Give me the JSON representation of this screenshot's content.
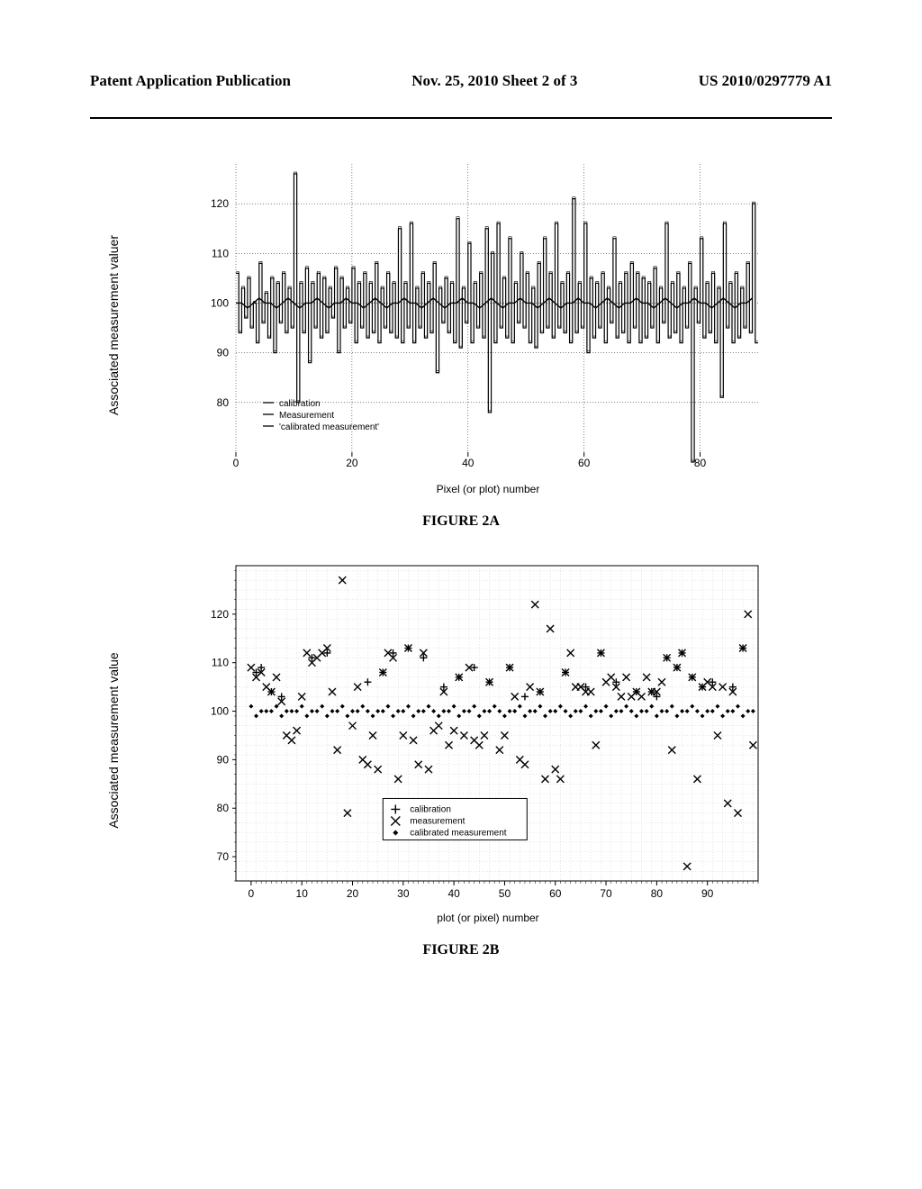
{
  "header": {
    "left": "Patent Application Publication",
    "center": "Nov. 25, 2010  Sheet 2 of 3",
    "right": "US 2010/0297779 A1"
  },
  "fig2a": {
    "title": "FIGURE 2A",
    "ylabel": "Associated measurement valuer",
    "xlabel": "Pixel (or plot) number",
    "xlim": [
      0,
      90
    ],
    "ylim": [
      70,
      128
    ],
    "xticks": [
      0,
      20,
      40,
      60,
      80
    ],
    "yticks": [
      80,
      90,
      100,
      110,
      120
    ],
    "grid_color": "#000000",
    "line_width": 1.2,
    "legend": {
      "items": [
        {
          "label": "calibration"
        },
        {
          "label": "Measurement"
        },
        {
          "label": "'calibrated measurement'"
        }
      ]
    },
    "calibrated": [
      100,
      100,
      99,
      100,
      101,
      100,
      100,
      99,
      100,
      101,
      100,
      99,
      100,
      100,
      101,
      100,
      99,
      100,
      100,
      101,
      100,
      100,
      99,
      100,
      101,
      100,
      99,
      100,
      100,
      101,
      100,
      100,
      99,
      100,
      101,
      100,
      99,
      100,
      100,
      101,
      100,
      100,
      99,
      100,
      101,
      100,
      99,
      100,
      100,
      101,
      100,
      100,
      99,
      100,
      101,
      100,
      99,
      100,
      100,
      101,
      100,
      100,
      99,
      100,
      101,
      100,
      99,
      100,
      100,
      101,
      100,
      100,
      99,
      100,
      101,
      100,
      99,
      100,
      100,
      101,
      100,
      100,
      99,
      100,
      101,
      100,
      99,
      100,
      100,
      101
    ],
    "cal_pairs": [
      [
        106,
        94
      ],
      [
        103,
        97
      ],
      [
        105,
        95
      ],
      [
        100,
        92
      ],
      [
        108,
        96
      ],
      [
        102,
        93
      ],
      [
        105,
        90
      ],
      [
        104,
        96
      ],
      [
        106,
        94
      ],
      [
        103,
        95
      ],
      [
        126,
        80
      ],
      [
        104,
        94
      ],
      [
        107,
        88
      ],
      [
        104,
        95
      ],
      [
        106,
        93
      ],
      [
        105,
        94
      ],
      [
        103,
        97
      ],
      [
        107,
        90
      ],
      [
        105,
        95
      ],
      [
        103,
        96
      ],
      [
        107,
        92
      ],
      [
        104,
        95
      ],
      [
        106,
        93
      ],
      [
        104,
        94
      ],
      [
        108,
        92
      ],
      [
        103,
        95
      ],
      [
        106,
        94
      ],
      [
        104,
        93
      ],
      [
        115,
        92
      ],
      [
        104,
        95
      ],
      [
        116,
        92
      ],
      [
        103,
        95
      ],
      [
        106,
        93
      ],
      [
        104,
        94
      ],
      [
        108,
        86
      ],
      [
        103,
        96
      ],
      [
        105,
        94
      ],
      [
        104,
        92
      ],
      [
        117,
        91
      ],
      [
        103,
        96
      ],
      [
        112,
        92
      ],
      [
        104,
        95
      ],
      [
        106,
        93
      ],
      [
        115,
        78
      ],
      [
        110,
        92
      ],
      [
        116,
        95
      ],
      [
        105,
        93
      ],
      [
        113,
        92
      ],
      [
        104,
        96
      ],
      [
        110,
        95
      ],
      [
        106,
        92
      ],
      [
        103,
        91
      ],
      [
        108,
        94
      ],
      [
        113,
        95
      ],
      [
        106,
        93
      ],
      [
        116,
        95
      ],
      [
        104,
        94
      ],
      [
        106,
        92
      ],
      [
        121,
        94
      ],
      [
        104,
        95
      ],
      [
        116,
        90
      ],
      [
        105,
        93
      ],
      [
        104,
        95
      ],
      [
        106,
        92
      ],
      [
        103,
        96
      ],
      [
        113,
        93
      ],
      [
        104,
        94
      ],
      [
        106,
        92
      ],
      [
        108,
        95
      ],
      [
        106,
        92
      ],
      [
        105,
        93
      ],
      [
        104,
        95
      ],
      [
        107,
        92
      ],
      [
        103,
        96
      ],
      [
        116,
        93
      ],
      [
        104,
        94
      ],
      [
        106,
        92
      ],
      [
        103,
        95
      ],
      [
        108,
        68
      ],
      [
        103,
        96
      ],
      [
        113,
        93
      ],
      [
        104,
        94
      ],
      [
        106,
        92
      ],
      [
        103,
        81
      ],
      [
        116,
        95
      ],
      [
        104,
        92
      ],
      [
        106,
        93
      ],
      [
        103,
        95
      ],
      [
        108,
        94
      ],
      [
        120,
        92
      ]
    ]
  },
  "fig2b": {
    "title": "FIGURE 2B",
    "ylabel": "Associated measurement value",
    "xlabel": "plot (or pixel) number",
    "xlim": [
      -3,
      100
    ],
    "ylim": [
      65,
      130
    ],
    "xticks": [
      0,
      10,
      20,
      30,
      40,
      50,
      60,
      70,
      80,
      90
    ],
    "yticks": [
      70,
      80,
      90,
      100,
      110,
      120
    ],
    "grid_color": "#cccccc",
    "legend": {
      "items": [
        {
          "marker": "plus",
          "label": "calibration"
        },
        {
          "marker": "x",
          "label": "measurement"
        },
        {
          "marker": "diamond",
          "label": "calibrated measurement"
        }
      ]
    },
    "calibration": [
      [
        1,
        108
      ],
      [
        2,
        109
      ],
      [
        4,
        104
      ],
      [
        6,
        103
      ],
      [
        12,
        111
      ],
      [
        15,
        112
      ],
      [
        23,
        106
      ],
      [
        26,
        108
      ],
      [
        28,
        112
      ],
      [
        31,
        113
      ],
      [
        34,
        111
      ],
      [
        38,
        105
      ],
      [
        41,
        107
      ],
      [
        44,
        109
      ],
      [
        47,
        106
      ],
      [
        51,
        109
      ],
      [
        54,
        103
      ],
      [
        57,
        104
      ],
      [
        62,
        108
      ],
      [
        66,
        105
      ],
      [
        69,
        112
      ],
      [
        72,
        106
      ],
      [
        76,
        104
      ],
      [
        79,
        104
      ],
      [
        80,
        103
      ],
      [
        82,
        111
      ],
      [
        84,
        109
      ],
      [
        85,
        112
      ],
      [
        87,
        107
      ],
      [
        89,
        105
      ],
      [
        91,
        106
      ],
      [
        95,
        105
      ],
      [
        97,
        113
      ]
    ],
    "measurement": [
      [
        0,
        109
      ],
      [
        1,
        107
      ],
      [
        2,
        108
      ],
      [
        3,
        105
      ],
      [
        4,
        104
      ],
      [
        5,
        107
      ],
      [
        6,
        102
      ],
      [
        7,
        95
      ],
      [
        8,
        94
      ],
      [
        9,
        96
      ],
      [
        10,
        103
      ],
      [
        11,
        112
      ],
      [
        12,
        110
      ],
      [
        13,
        111
      ],
      [
        14,
        112
      ],
      [
        15,
        113
      ],
      [
        16,
        104
      ],
      [
        17,
        92
      ],
      [
        18,
        127
      ],
      [
        19,
        79
      ],
      [
        20,
        97
      ],
      [
        21,
        105
      ],
      [
        22,
        90
      ],
      [
        23,
        89
      ],
      [
        24,
        95
      ],
      [
        25,
        88
      ],
      [
        26,
        108
      ],
      [
        27,
        112
      ],
      [
        28,
        111
      ],
      [
        29,
        86
      ],
      [
        30,
        95
      ],
      [
        31,
        113
      ],
      [
        32,
        94
      ],
      [
        33,
        89
      ],
      [
        34,
        112
      ],
      [
        35,
        88
      ],
      [
        36,
        96
      ],
      [
        37,
        97
      ],
      [
        38,
        104
      ],
      [
        39,
        93
      ],
      [
        40,
        96
      ],
      [
        41,
        107
      ],
      [
        42,
        95
      ],
      [
        43,
        109
      ],
      [
        44,
        94
      ],
      [
        45,
        93
      ],
      [
        46,
        95
      ],
      [
        47,
        106
      ],
      [
        48,
        77
      ],
      [
        49,
        92
      ],
      [
        50,
        95
      ],
      [
        51,
        109
      ],
      [
        52,
        103
      ],
      [
        53,
        90
      ],
      [
        54,
        89
      ],
      [
        55,
        105
      ],
      [
        56,
        122
      ],
      [
        57,
        104
      ],
      [
        58,
        86
      ],
      [
        59,
        117
      ],
      [
        60,
        88
      ],
      [
        61,
        86
      ],
      [
        62,
        108
      ],
      [
        63,
        112
      ],
      [
        64,
        105
      ],
      [
        65,
        105
      ],
      [
        66,
        104
      ],
      [
        67,
        104
      ],
      [
        68,
        93
      ],
      [
        69,
        112
      ],
      [
        70,
        106
      ],
      [
        71,
        107
      ],
      [
        72,
        105
      ],
      [
        73,
        103
      ],
      [
        74,
        107
      ],
      [
        75,
        103
      ],
      [
        76,
        104
      ],
      [
        77,
        103
      ],
      [
        78,
        107
      ],
      [
        79,
        104
      ],
      [
        80,
        104
      ],
      [
        81,
        106
      ],
      [
        82,
        111
      ],
      [
        83,
        92
      ],
      [
        84,
        109
      ],
      [
        85,
        112
      ],
      [
        86,
        68
      ],
      [
        87,
        107
      ],
      [
        88,
        86
      ],
      [
        89,
        105
      ],
      [
        90,
        106
      ],
      [
        91,
        105
      ],
      [
        92,
        95
      ],
      [
        93,
        105
      ],
      [
        94,
        81
      ],
      [
        95,
        104
      ],
      [
        96,
        79
      ],
      [
        97,
        113
      ],
      [
        98,
        120
      ],
      [
        99,
        93
      ]
    ],
    "calibrated": [
      [
        0,
        101
      ],
      [
        1,
        99
      ],
      [
        2,
        100
      ],
      [
        3,
        100
      ],
      [
        4,
        100
      ],
      [
        5,
        101
      ],
      [
        6,
        99
      ],
      [
        7,
        100
      ],
      [
        8,
        100
      ],
      [
        9,
        100
      ],
      [
        10,
        101
      ],
      [
        11,
        99
      ],
      [
        12,
        100
      ],
      [
        13,
        100
      ],
      [
        14,
        101
      ],
      [
        15,
        99
      ],
      [
        16,
        100
      ],
      [
        17,
        100
      ],
      [
        18,
        101
      ],
      [
        19,
        99
      ],
      [
        20,
        100
      ],
      [
        21,
        100
      ],
      [
        22,
        101
      ],
      [
        23,
        100
      ],
      [
        24,
        99
      ],
      [
        25,
        100
      ],
      [
        26,
        100
      ],
      [
        27,
        101
      ],
      [
        28,
        99
      ],
      [
        29,
        100
      ],
      [
        30,
        100
      ],
      [
        31,
        101
      ],
      [
        32,
        99
      ],
      [
        33,
        100
      ],
      [
        34,
        100
      ],
      [
        35,
        101
      ],
      [
        36,
        100
      ],
      [
        37,
        99
      ],
      [
        38,
        100
      ],
      [
        39,
        100
      ],
      [
        40,
        101
      ],
      [
        41,
        99
      ],
      [
        42,
        100
      ],
      [
        43,
        100
      ],
      [
        44,
        101
      ],
      [
        45,
        99
      ],
      [
        46,
        100
      ],
      [
        47,
        100
      ],
      [
        48,
        101
      ],
      [
        49,
        100
      ],
      [
        50,
        99
      ],
      [
        51,
        100
      ],
      [
        52,
        100
      ],
      [
        53,
        101
      ],
      [
        54,
        99
      ],
      [
        55,
        100
      ],
      [
        56,
        100
      ],
      [
        57,
        101
      ],
      [
        58,
        99
      ],
      [
        59,
        100
      ],
      [
        60,
        100
      ],
      [
        61,
        101
      ],
      [
        62,
        100
      ],
      [
        63,
        99
      ],
      [
        64,
        100
      ],
      [
        65,
        100
      ],
      [
        66,
        101
      ],
      [
        67,
        99
      ],
      [
        68,
        100
      ],
      [
        69,
        100
      ],
      [
        70,
        101
      ],
      [
        71,
        99
      ],
      [
        72,
        100
      ],
      [
        73,
        100
      ],
      [
        74,
        101
      ],
      [
        75,
        100
      ],
      [
        76,
        99
      ],
      [
        77,
        100
      ],
      [
        78,
        100
      ],
      [
        79,
        101
      ],
      [
        80,
        99
      ],
      [
        81,
        100
      ],
      [
        82,
        100
      ],
      [
        83,
        101
      ],
      [
        84,
        99
      ],
      [
        85,
        100
      ],
      [
        86,
        100
      ],
      [
        87,
        101
      ],
      [
        88,
        100
      ],
      [
        89,
        99
      ],
      [
        90,
        100
      ],
      [
        91,
        100
      ],
      [
        92,
        101
      ],
      [
        93,
        99
      ],
      [
        94,
        100
      ],
      [
        95,
        100
      ],
      [
        96,
        101
      ],
      [
        97,
        99
      ],
      [
        98,
        100
      ],
      [
        99,
        100
      ]
    ]
  }
}
